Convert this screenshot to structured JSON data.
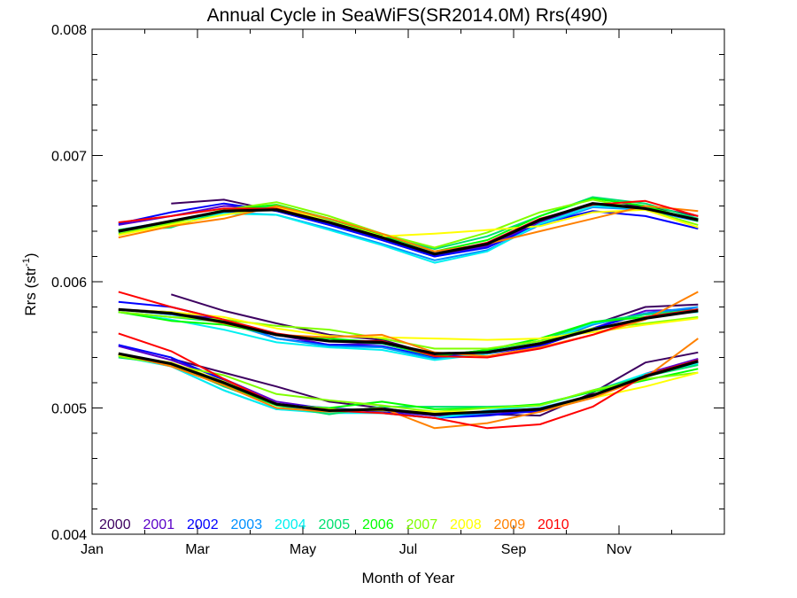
{
  "chart_data": {
    "type": "line",
    "title": "Annual Cycle in SeaWiFS(SR2014.0M) Rrs(490)",
    "xlabel": "Month of Year",
    "ylabel_main": "Rrs (str",
    "ylabel_sup": "-1",
    "ylabel_close": ")",
    "xlim": [
      0,
      12
    ],
    "ylim": [
      0.004,
      0.008
    ],
    "x_ticks": [
      {
        "value": 0,
        "label": "Jan"
      },
      {
        "value": 2,
        "label": "Mar"
      },
      {
        "value": 4,
        "label": "May"
      },
      {
        "value": 6,
        "label": "Jul"
      },
      {
        "value": 8,
        "label": "Sep"
      },
      {
        "value": 10,
        "label": "Nov"
      }
    ],
    "y_ticks": [
      {
        "value": 0.004,
        "label": "0.004"
      },
      {
        "value": 0.005,
        "label": "0.005"
      },
      {
        "value": 0.006,
        "label": "0.006"
      },
      {
        "value": 0.007,
        "label": "0.007"
      },
      {
        "value": 0.008,
        "label": "0.008"
      }
    ],
    "legend_placement": "bottom-left",
    "grid": false,
    "x": [
      0.5,
      1.5,
      2.5,
      3.5,
      4.5,
      5.5,
      6.5,
      7.5,
      8.5,
      9.5,
      10.5,
      11.5
    ],
    "mean_color": "#000000",
    "groups": [
      {
        "mean": [
          0.0064,
          0.00648,
          0.00656,
          0.00657,
          0.00647,
          0.00635,
          0.00622,
          0.0063,
          0.00649,
          0.00662,
          0.00658,
          0.00649
        ],
        "series": [
          {
            "name": "2000",
            "color": "#3d0060",
            "values": [
              null,
              0.00662,
              0.00665,
              0.00656,
              0.00645,
              0.00634,
              0.00621,
              0.00629,
              0.00648,
              0.00662,
              0.0066,
              0.00652
            ]
          },
          {
            "name": "2001",
            "color": "#5a00c8",
            "values": [
              0.00645,
              0.00652,
              0.0066,
              0.00658,
              0.00646,
              0.00633,
              0.0062,
              0.00628,
              0.00647,
              0.0066,
              0.00657,
              0.00648
            ]
          },
          {
            "name": "2002",
            "color": "#0000ff",
            "values": [
              0.00646,
              0.00655,
              0.00662,
              0.00656,
              0.00645,
              0.00633,
              0.0062,
              0.00627,
              0.00646,
              0.00656,
              0.00652,
              0.00642
            ]
          },
          {
            "name": "2003",
            "color": "#0090ff",
            "values": [
              0.00641,
              0.00648,
              0.00655,
              0.00653,
              0.00642,
              0.0063,
              0.00617,
              0.00625,
              0.00645,
              0.00659,
              0.00657,
              0.00648
            ]
          },
          {
            "name": "2004",
            "color": "#00f0f0",
            "values": [
              0.00639,
              0.00647,
              0.00654,
              0.00653,
              0.00641,
              0.00629,
              0.00615,
              0.00624,
              0.00646,
              0.0066,
              0.00658,
              0.00649
            ]
          },
          {
            "name": "2005",
            "color": "#00e070",
            "values": [
              0.0064,
              0.00643,
              0.00656,
              0.0066,
              0.00649,
              0.00636,
              0.00626,
              0.00636,
              0.00652,
              0.00667,
              0.00662,
              0.0065
            ]
          },
          {
            "name": "2006",
            "color": "#00ff00",
            "values": [
              0.00641,
              0.00647,
              0.00657,
              0.00661,
              0.0065,
              0.00637,
              0.00624,
              0.00633,
              0.00652,
              0.00666,
              0.0066,
              0.00648
            ]
          },
          {
            "name": "2007",
            "color": "#80ff00",
            "values": [
              0.00638,
              0.00646,
              0.00657,
              0.00663,
              0.00652,
              0.00638,
              0.00627,
              0.00639,
              0.00655,
              0.00665,
              0.00657,
              0.00645
            ]
          },
          {
            "name": "2008",
            "color": "#ffff00",
            "values": [
              0.00637,
              0.00645,
              0.00653,
              0.00659,
              0.00648,
              0.00636,
              0.00638,
              0.00641,
              0.00644,
              0.00655,
              0.00657,
              0.00643
            ]
          },
          {
            "name": "2009",
            "color": "#ff8000",
            "values": [
              0.00635,
              0.00644,
              0.0065,
              0.0066,
              0.0065,
              0.00638,
              0.00624,
              0.0063,
              0.0064,
              0.0065,
              0.0066,
              0.00656
            ]
          },
          {
            "name": "2010",
            "color": "#ff0000",
            "values": [
              0.00647,
              0.00652,
              0.00658,
              0.00658,
              0.00647,
              0.00635,
              0.00622,
              0.00631,
              0.0065,
              0.00661,
              0.00664,
              0.00652
            ]
          }
        ]
      },
      {
        "mean": [
          0.00578,
          0.00575,
          0.00568,
          0.00558,
          0.00553,
          0.00552,
          0.00543,
          0.00544,
          0.00551,
          0.00562,
          0.00571,
          0.00577
        ],
        "series": [
          {
            "name": "2000",
            "color": "#3d0060",
            "values": [
              null,
              0.0059,
              0.00577,
              0.00567,
              0.00558,
              0.00554,
              0.00542,
              0.00545,
              0.0055,
              0.00566,
              0.0058,
              0.00582
            ]
          },
          {
            "name": "2001",
            "color": "#5a00c8",
            "values": [
              0.00578,
              0.00576,
              0.0057,
              0.00558,
              0.0055,
              0.00551,
              0.00541,
              0.00543,
              0.00549,
              0.00563,
              0.00577,
              0.00578
            ]
          },
          {
            "name": "2002",
            "color": "#0000ff",
            "values": [
              0.00584,
              0.0058,
              0.0057,
              0.00555,
              0.0055,
              0.00549,
              0.0054,
              0.00544,
              0.00549,
              0.00563,
              0.00575,
              0.00578
            ]
          },
          {
            "name": "2003",
            "color": "#0090ff",
            "values": [
              0.00578,
              0.00574,
              0.00568,
              0.00555,
              0.00549,
              0.00548,
              0.00539,
              0.00543,
              0.00551,
              0.00566,
              0.00575,
              0.0058
            ]
          },
          {
            "name": "2004",
            "color": "#00f0f0",
            "values": [
              0.00576,
              0.0057,
              0.00562,
              0.00552,
              0.00548,
              0.00546,
              0.00538,
              0.00543,
              0.00551,
              0.00567,
              0.00574,
              0.00576
            ]
          },
          {
            "name": "2005",
            "color": "#00e070",
            "values": [
              0.00576,
              0.00572,
              0.00568,
              0.00558,
              0.00553,
              0.00551,
              0.00541,
              0.00546,
              0.00553,
              0.00568,
              0.00574,
              0.00578
            ]
          },
          {
            "name": "2006",
            "color": "#00ff00",
            "values": [
              0.00576,
              0.00569,
              0.00566,
              0.00558,
              0.00555,
              0.00552,
              0.00541,
              0.00546,
              0.00555,
              0.00568,
              0.00572,
              0.00577
            ]
          },
          {
            "name": "2007",
            "color": "#80ff00",
            "values": [
              0.00576,
              0.00572,
              0.0057,
              0.00565,
              0.00562,
              0.00555,
              0.00547,
              0.00547,
              0.00553,
              0.00563,
              0.00567,
              0.00572
            ]
          },
          {
            "name": "2008",
            "color": "#ffff00",
            "values": [
              0.00578,
              0.00576,
              0.00572,
              0.00563,
              0.00557,
              0.00556,
              0.00555,
              0.00554,
              0.00555,
              0.0056,
              0.00566,
              0.00571
            ]
          },
          {
            "name": "2009",
            "color": "#ff8000",
            "values": [
              0.00578,
              0.00575,
              0.00567,
              0.00558,
              0.00556,
              0.00558,
              0.00544,
              0.00541,
              0.00548,
              0.00558,
              0.0057,
              0.00592
            ]
          },
          {
            "name": "2010",
            "color": "#ff0000",
            "values": [
              0.00592,
              0.0058,
              0.0057,
              0.00559,
              0.00553,
              0.00553,
              0.00541,
              0.0054,
              0.00547,
              0.00558,
              0.00572,
              0.00578
            ]
          }
        ]
      },
      {
        "mean": [
          0.00543,
          0.00535,
          0.0052,
          0.00503,
          0.00498,
          0.00499,
          0.00495,
          0.00497,
          0.00499,
          0.0051,
          0.00525,
          0.00537
        ],
        "series": [
          {
            "name": "2000",
            "color": "#3d0060",
            "values": [
              null,
              0.00539,
              0.00528,
              0.00517,
              0.00505,
              0.005,
              0.00494,
              0.00495,
              0.00494,
              0.00512,
              0.00536,
              0.00544
            ]
          },
          {
            "name": "2001",
            "color": "#5a00c8",
            "values": [
              0.00549,
              0.00538,
              0.00523,
              0.00505,
              0.00499,
              0.00498,
              0.00494,
              0.00496,
              0.00497,
              0.0051,
              0.00527,
              0.00539
            ]
          },
          {
            "name": "2002",
            "color": "#0000ff",
            "values": [
              0.0055,
              0.0054,
              0.00522,
              0.00503,
              0.005,
              0.00497,
              0.00492,
              0.00494,
              0.00498,
              0.00509,
              0.00526,
              0.00538
            ]
          },
          {
            "name": "2003",
            "color": "#0090ff",
            "values": [
              0.00542,
              0.00533,
              0.00514,
              0.00499,
              0.00497,
              0.00496,
              0.00492,
              0.00496,
              0.005,
              0.0051,
              0.00525,
              0.00536
            ]
          },
          {
            "name": "2004",
            "color": "#00f0f0",
            "values": [
              0.00541,
              0.00533,
              0.00514,
              0.00499,
              0.00496,
              0.00496,
              0.00492,
              0.00498,
              0.00502,
              0.00513,
              0.00527,
              0.00535
            ]
          },
          {
            "name": "2005",
            "color": "#00e070",
            "values": [
              0.0054,
              0.00535,
              0.00517,
              0.00502,
              0.00495,
              0.00501,
              0.00501,
              0.00501,
              0.00502,
              0.00514,
              0.00525,
              0.00534
            ]
          },
          {
            "name": "2006",
            "color": "#00ff00",
            "values": [
              0.00542,
              0.00534,
              0.00519,
              0.00502,
              0.005,
              0.00505,
              0.00499,
              0.005,
              0.00503,
              0.00513,
              0.00522,
              0.00531
            ]
          },
          {
            "name": "2007",
            "color": "#80ff00",
            "values": [
              0.00541,
              0.00534,
              0.00526,
              0.00511,
              0.00506,
              0.00502,
              0.00497,
              0.005,
              0.00502,
              0.00514,
              0.00523,
              0.00528
            ]
          },
          {
            "name": "2008",
            "color": "#ffff00",
            "values": [
              0.00542,
              0.00536,
              0.00521,
              0.00503,
              0.00499,
              0.00498,
              0.00497,
              0.00497,
              0.00499,
              0.00508,
              0.00517,
              0.00528
            ]
          },
          {
            "name": "2009",
            "color": "#ff8000",
            "values": [
              0.00543,
              0.00533,
              0.00518,
              0.005,
              0.00497,
              0.005,
              0.00484,
              0.00488,
              0.00497,
              0.00508,
              0.00524,
              0.00555
            ]
          },
          {
            "name": "2010",
            "color": "#ff0000",
            "values": [
              0.00559,
              0.00545,
              0.00523,
              0.00503,
              0.00498,
              0.00496,
              0.00492,
              0.00484,
              0.00487,
              0.00501,
              0.00526,
              0.00538
            ]
          }
        ]
      }
    ]
  }
}
